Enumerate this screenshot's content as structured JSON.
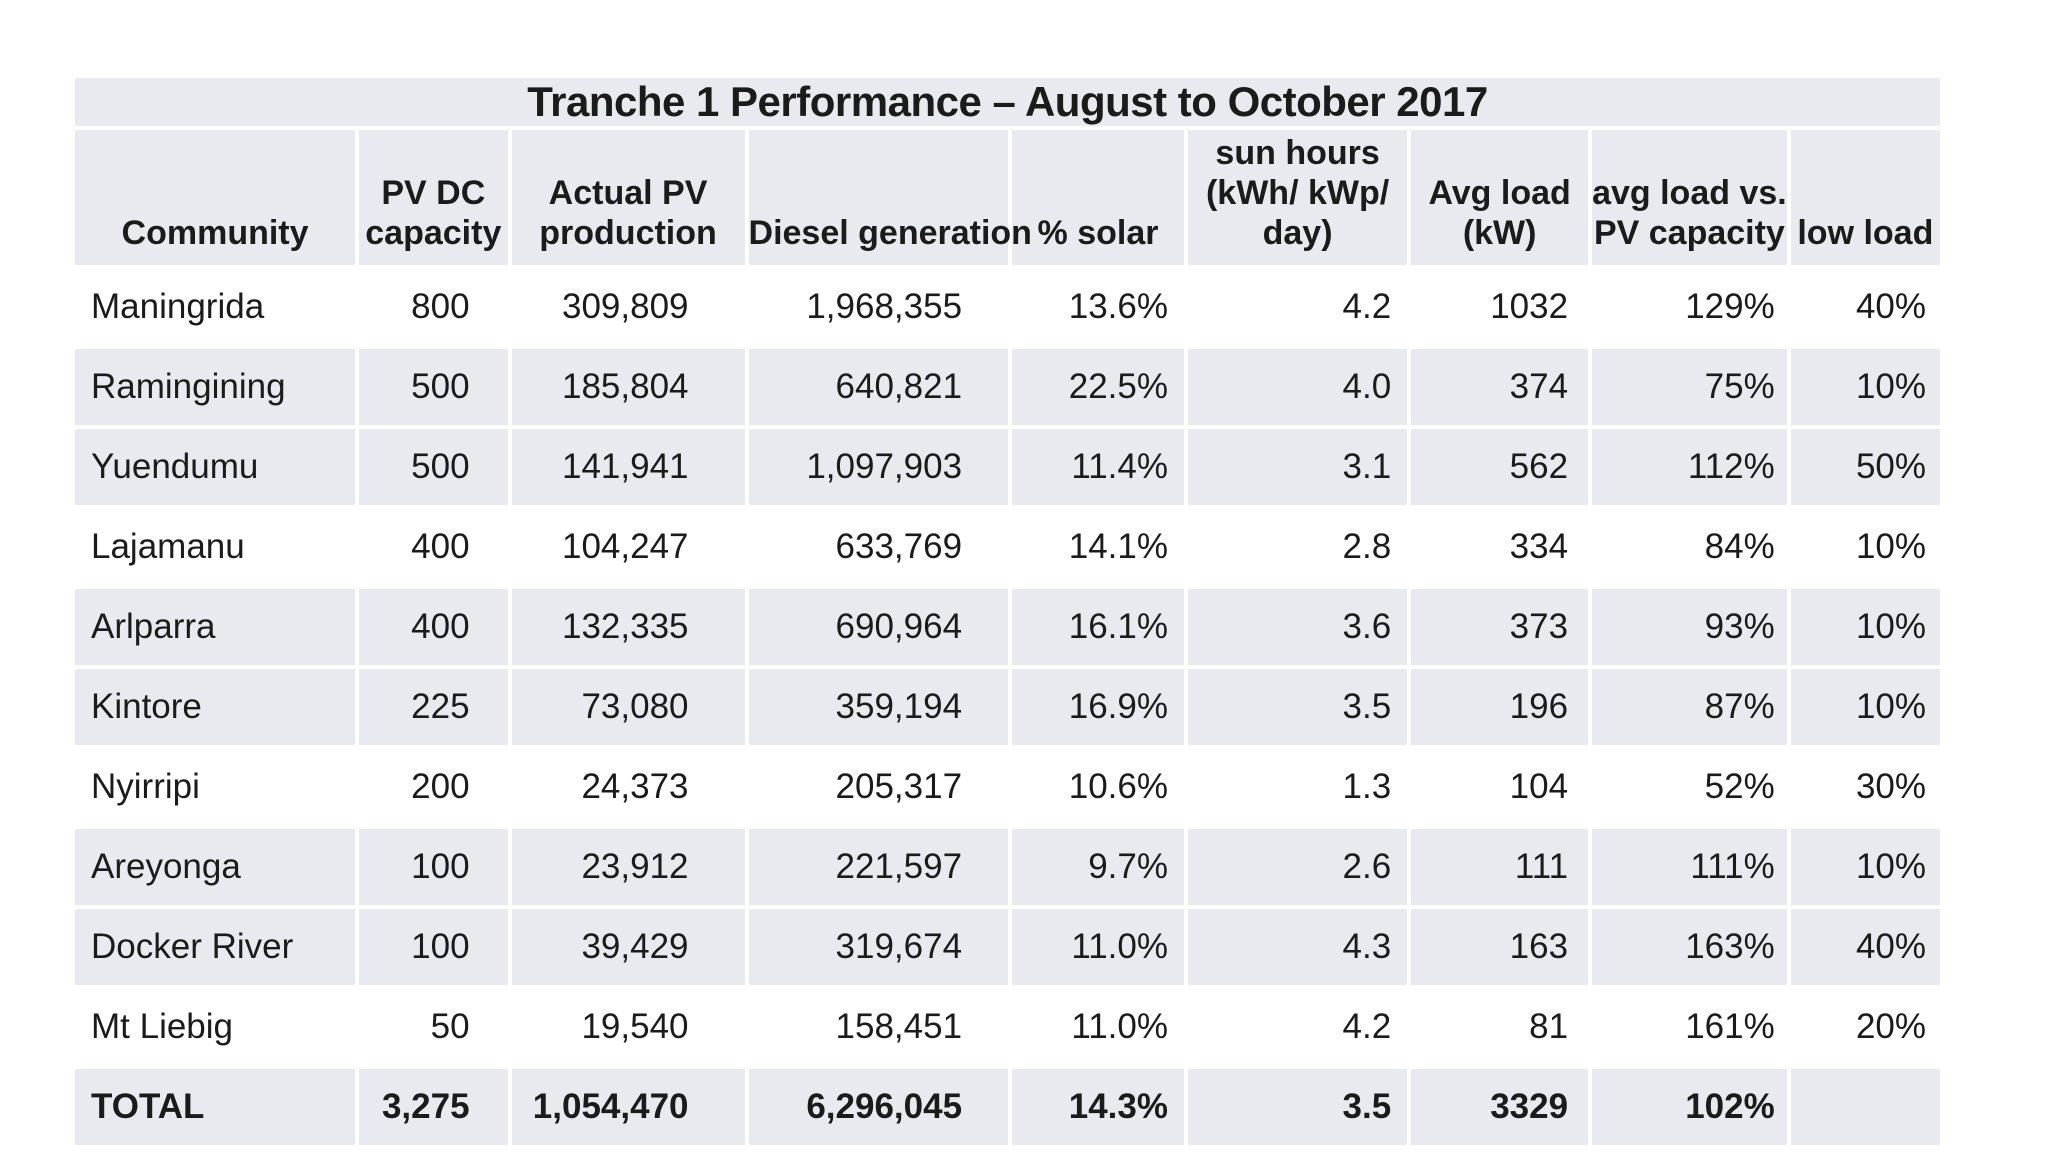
{
  "table": {
    "title": "Tranche 1 Performance – August to October 2017",
    "columns": [
      "Community",
      "PV DC\ncapacity",
      "Actual PV\nproduction",
      "Diesel generation",
      "% solar",
      "sun hours\n(kWh/ kWp/\nday)",
      "Avg load\n(kW)",
      "avg load vs.\nPV capacity",
      "low load"
    ],
    "rows": [
      [
        "Maningrida",
        "800",
        "309,809",
        "1,968,355",
        "13.6%",
        "4.2",
        "1032",
        "129%",
        "40%"
      ],
      [
        "Ramingining",
        "500",
        "185,804",
        "640,821",
        "22.5%",
        "4.0",
        "374",
        "75%",
        "10%"
      ],
      [
        "Yuendumu",
        "500",
        "141,941",
        "1,097,903",
        "11.4%",
        "3.1",
        "562",
        "112%",
        "50%"
      ],
      [
        "Lajamanu",
        "400",
        "104,247",
        "633,769",
        "14.1%",
        "2.8",
        "334",
        "84%",
        "10%"
      ],
      [
        "Arlparra",
        "400",
        "132,335",
        "690,964",
        "16.1%",
        "3.6",
        "373",
        "93%",
        "10%"
      ],
      [
        "Kintore",
        "225",
        "73,080",
        "359,194",
        "16.9%",
        "3.5",
        "196",
        "87%",
        "10%"
      ],
      [
        "Nyirripi",
        "200",
        "24,373",
        "205,317",
        "10.6%",
        "1.3",
        "104",
        "52%",
        "30%"
      ],
      [
        "Areyonga",
        "100",
        "23,912",
        "221,597",
        "9.7%",
        "2.6",
        "111",
        "111%",
        "10%"
      ],
      [
        "Docker River",
        "100",
        "39,429",
        "319,674",
        "11.0%",
        "4.3",
        "163",
        "163%",
        "40%"
      ],
      [
        "Mt Liebig",
        "50",
        "19,540",
        "158,451",
        "11.0%",
        "4.2",
        "81",
        "161%",
        "20%"
      ]
    ],
    "total_row": [
      "TOTAL",
      "3,275",
      "1,054,470",
      "6,296,045",
      "14.3%",
      "3.5",
      "3329",
      "102%",
      ""
    ],
    "colors": {
      "band_fill": "#e9eaf0",
      "text": "#1b1b1b",
      "background": "#ffffff"
    }
  }
}
